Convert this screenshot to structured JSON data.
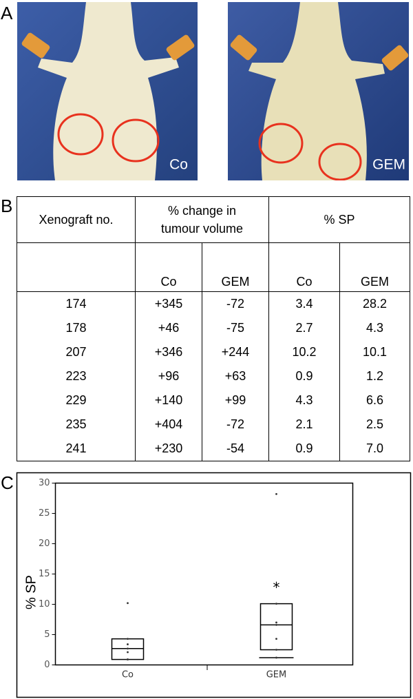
{
  "panel_labels": [
    "A",
    "B",
    "C"
  ],
  "photos": [
    {
      "label": "Co"
    },
    {
      "label": "GEM"
    }
  ],
  "table": {
    "header": [
      "Xenograft no.",
      "% change in tumour volume",
      "% SP"
    ],
    "subheader": [
      "Co",
      "GEM",
      "Co",
      "GEM"
    ],
    "rows": [
      [
        "174",
        "+345",
        "-72",
        "3.4",
        "28.2"
      ],
      [
        "178",
        "+46",
        "-75",
        "2.7",
        "4.3"
      ],
      [
        "207",
        "+346",
        "+244",
        "10.2",
        "10.1"
      ],
      [
        "223",
        "+96",
        "+63",
        "0.9",
        "1.2"
      ],
      [
        "229",
        "+140",
        "+99",
        "4.3",
        "6.6"
      ],
      [
        "235",
        "+404",
        "-72",
        "2.1",
        "2.5"
      ],
      [
        "241",
        "+230",
        "-54",
        "0.9",
        "7.0"
      ]
    ]
  },
  "chart_data": {
    "type": "box",
    "y_label": "% SP",
    "categories": [
      "Co",
      "GEM"
    ],
    "points": [
      [
        3.4,
        2.7,
        10.2,
        0.9,
        4.3,
        2.1,
        0.9
      ],
      [
        28.2,
        4.3,
        10.1,
        1.2,
        6.6,
        2.5,
        7.0
      ]
    ],
    "boxes": [
      {
        "q1": 0.9,
        "median": 2.7,
        "q3": 4.3
      },
      {
        "q1": 2.5,
        "median": 6.6,
        "q3": 10.1,
        "whisker_low": 1.2
      }
    ],
    "annotation": "*",
    "ylim": [
      0,
      30
    ],
    "yticks": [
      0,
      5,
      10,
      15,
      20,
      25,
      30
    ]
  }
}
